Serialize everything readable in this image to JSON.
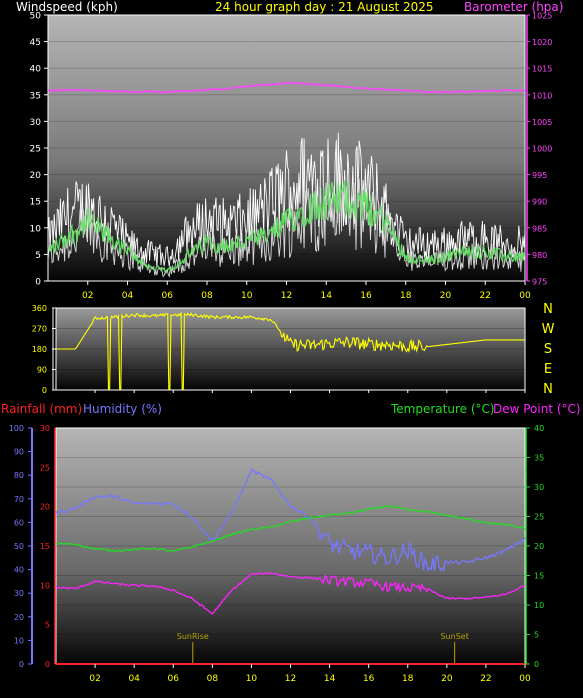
{
  "title": "24 hour graph day : 21 August 2025",
  "colors": {
    "wind": "#d9d9d9",
    "gust": "#ffffff",
    "wind_avg": "#66dd66",
    "barometer": "#ff44ff",
    "direction": "#ffff00",
    "rainfall": "#ff2222",
    "humidity": "#7777ff",
    "temperature": "#22dd22",
    "dewpoint": "#ff22ff",
    "sun_marker": "#b8a400",
    "label_yellow": "#ffff00",
    "axis_white": "#ffffff"
  },
  "chart_data": [
    {
      "type": "line",
      "id": "wind-barometer",
      "xlabel_ticks": [
        "02",
        "04",
        "06",
        "08",
        "10",
        "12",
        "14",
        "16",
        "18",
        "20",
        "22",
        "00"
      ],
      "left_axis": {
        "label": "Windspeed (kph)",
        "ylim": [
          0,
          50
        ],
        "ticks": [
          0,
          5,
          10,
          15,
          20,
          25,
          30,
          35,
          40,
          45,
          50
        ]
      },
      "right_axis": {
        "label": "Barometer (hpa)",
        "ylim": [
          975,
          1025
        ],
        "ticks": [
          975,
          980,
          985,
          990,
          995,
          1000,
          1005,
          1010,
          1015,
          1020,
          1025
        ]
      },
      "x_hours": [
        0,
        1,
        2,
        3,
        4,
        5,
        6,
        7,
        8,
        9,
        10,
        11,
        12,
        13,
        14,
        15,
        16,
        17,
        18,
        19,
        20,
        21,
        22,
        23,
        24
      ],
      "series": [
        {
          "name": "Windspeed",
          "axis": "left",
          "values": [
            6,
            9,
            12,
            9,
            6,
            3,
            2,
            5,
            8,
            7,
            8,
            9,
            12,
            15,
            16,
            17,
            15,
            12,
            5,
            4,
            5,
            6,
            6,
            5,
            5
          ]
        },
        {
          "name": "Wind gust",
          "axis": "left",
          "values": [
            9,
            14,
            16,
            13,
            8,
            6,
            5,
            10,
            13,
            12,
            13,
            16,
            20,
            22,
            23,
            22,
            20,
            15,
            8,
            8,
            8,
            9,
            9,
            8,
            8
          ]
        },
        {
          "name": "Barometer",
          "axis": "right",
          "values": [
            1010.8,
            1010.9,
            1010.8,
            1010.7,
            1010.6,
            1010.6,
            1010.5,
            1010.7,
            1010.9,
            1011.2,
            1011.6,
            1011.9,
            1012.2,
            1012.1,
            1011.8,
            1011.5,
            1011.2,
            1011.0,
            1010.8,
            1010.6,
            1010.5,
            1010.6,
            1010.7,
            1010.8,
            1010.8
          ]
        }
      ]
    },
    {
      "type": "line",
      "id": "wind-direction",
      "left_axis": {
        "ylim": [
          0,
          360
        ],
        "ticks": [
          0,
          90,
          180,
          270,
          360
        ]
      },
      "right_axis": {
        "ticks": [
          "N",
          "W",
          "S",
          "E",
          "N"
        ]
      },
      "x_hours": [
        0,
        1,
        2,
        3,
        4,
        5,
        6,
        7,
        8,
        9,
        10,
        11,
        12,
        13,
        14,
        15,
        16,
        17,
        18,
        19,
        20,
        21,
        22,
        23,
        24
      ],
      "series": [
        {
          "name": "Wind direction",
          "values": [
            180,
            180,
            315,
            320,
            330,
            325,
            330,
            330,
            320,
            320,
            320,
            310,
            200,
            195,
            205,
            210,
            200,
            200,
            190,
            190,
            200,
            210,
            220,
            220,
            220
          ]
        }
      ],
      "drops_to_zero_hours": [
        2.7,
        3.3,
        5.8,
        6.5
      ]
    },
    {
      "type": "line",
      "id": "temp-humidity",
      "xlabel_ticks": [
        "02",
        "04",
        "06",
        "08",
        "10",
        "12",
        "14",
        "16",
        "18",
        "20",
        "22",
        "00"
      ],
      "axis_labels": {
        "rainfall": "Rainfall (mm)",
        "humidity": "Humidity (%)",
        "temperature": "Temperature (°C)",
        "dewpoint": "Dew Point (°C)"
      },
      "humidity_axis": {
        "ylim": [
          0,
          100
        ],
        "ticks": [
          0,
          10,
          20,
          30,
          40,
          50,
          60,
          70,
          80,
          90,
          100
        ]
      },
      "rain_axis": {
        "ylim": [
          0,
          30
        ],
        "ticks": [
          0,
          5,
          10,
          15,
          20,
          25,
          30
        ]
      },
      "temp_axis": {
        "ylim": [
          0,
          40
        ],
        "ticks": [
          0,
          5,
          10,
          15,
          20,
          25,
          30,
          35,
          40
        ]
      },
      "annotations": [
        {
          "label": "SunRise",
          "hour": 7.0
        },
        {
          "label": "SunSet",
          "hour": 20.4
        }
      ],
      "x_hours": [
        0,
        1,
        2,
        3,
        4,
        5,
        6,
        7,
        8,
        9,
        10,
        11,
        12,
        13,
        14,
        15,
        16,
        17,
        18,
        19,
        20,
        21,
        22,
        23,
        24
      ],
      "series": [
        {
          "name": "Humidity",
          "axis": "humidity",
          "values": [
            64,
            66,
            71,
            71,
            68,
            68,
            68,
            62,
            52,
            64,
            82,
            78,
            67,
            62,
            51,
            48,
            47,
            45,
            48,
            42,
            43,
            43,
            45,
            48,
            53
          ]
        },
        {
          "name": "Temperature",
          "axis": "temp",
          "values": [
            20.4,
            20.3,
            19.5,
            19.2,
            19.4,
            19.6,
            19.1,
            19.9,
            20.8,
            22.0,
            22.8,
            23.2,
            24.1,
            24.8,
            25.2,
            25.6,
            26.2,
            26.8,
            26.1,
            25.8,
            25.2,
            24.6,
            24.0,
            23.6,
            23.0
          ]
        },
        {
          "name": "Dew Point",
          "axis": "temp",
          "values": [
            13.0,
            12.8,
            14.0,
            13.6,
            13.3,
            13.2,
            12.5,
            11.0,
            8.5,
            12.5,
            15.2,
            15.4,
            14.8,
            14.6,
            14.2,
            13.9,
            13.7,
            13.1,
            12.9,
            12.7,
            11.1,
            11.1,
            11.3,
            11.8,
            13.3
          ]
        },
        {
          "name": "Rainfall",
          "axis": "rain",
          "values": [
            0,
            0,
            0,
            0,
            0,
            0,
            0,
            0,
            0,
            0,
            0,
            0,
            0,
            0,
            0,
            0,
            0,
            0,
            0,
            0,
            0,
            0,
            0,
            0,
            0
          ]
        }
      ]
    }
  ]
}
